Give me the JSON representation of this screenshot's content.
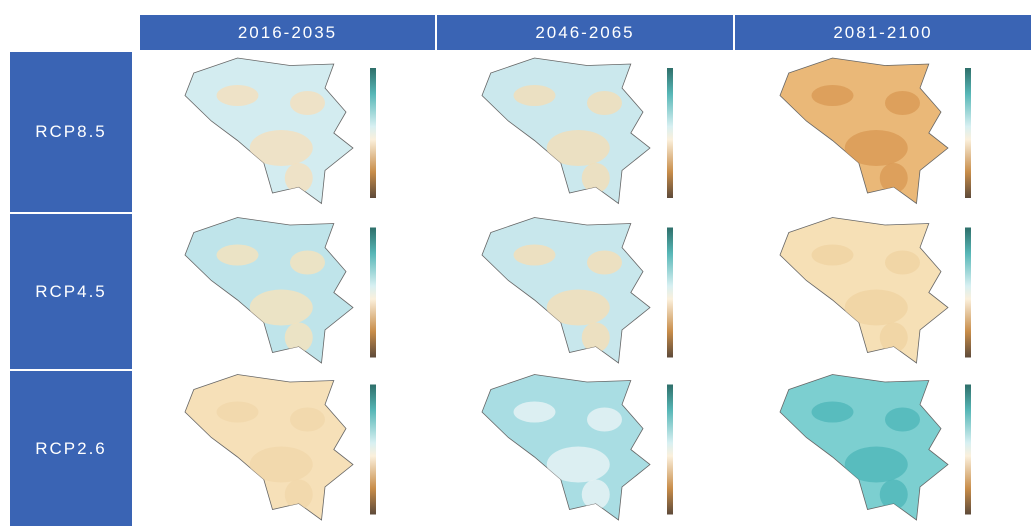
{
  "columns": [
    "2016-2035",
    "2046-2065",
    "2081-2100"
  ],
  "rows": [
    "RCP8.5",
    "RCP4.5",
    "RCP2.6"
  ]
}
